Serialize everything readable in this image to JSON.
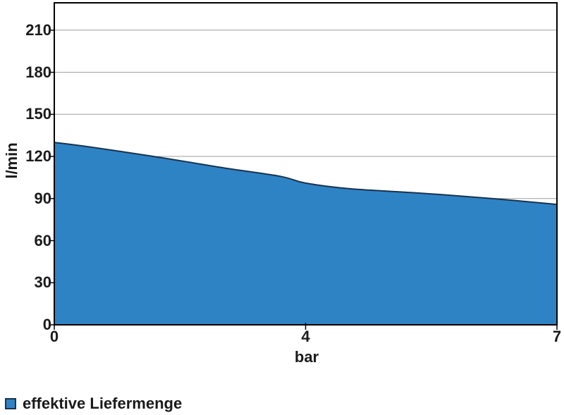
{
  "chart_data": {
    "type": "area",
    "title": "",
    "xlabel": "bar",
    "ylabel": "l/min",
    "legend": [
      {
        "label": "effektive Liefermenge",
        "color": "#2E83C5"
      }
    ],
    "legend_position": "bottom-left",
    "grid": "horizontal",
    "x_ticks": [
      {
        "label": "0",
        "fraction": 0
      },
      {
        "label": "4",
        "fraction": 0.5
      },
      {
        "label": "7",
        "fraction": 1
      }
    ],
    "y_ticks": [
      0,
      30,
      60,
      90,
      120,
      150,
      180,
      210
    ],
    "ylim": [
      0,
      229.5
    ],
    "categories": [
      0,
      4,
      7
    ],
    "series": [
      {
        "name": "effektive Liefermenge",
        "unit": "l/min",
        "values": [
          130,
          100,
          85
        ]
      }
    ],
    "smoothed": true,
    "curve_samples": [
      {
        "fx": 0.0,
        "value": 130.0
      },
      {
        "fx": 0.06,
        "value": 127.3
      },
      {
        "fx": 0.18,
        "value": 121.0
      },
      {
        "fx": 0.26,
        "value": 116.4
      },
      {
        "fx": 0.34,
        "value": 111.7
      },
      {
        "fx": 0.45,
        "value": 105.8
      },
      {
        "fx": 0.5,
        "value": 101.0
      },
      {
        "fx": 0.59,
        "value": 96.9
      },
      {
        "fx": 0.73,
        "value": 93.8
      },
      {
        "fx": 0.87,
        "value": 90.0
      },
      {
        "fx": 1.0,
        "value": 85.8
      }
    ],
    "colors": {
      "fill": "#2E83C5",
      "line": "#17344F",
      "grid": "#9D9D9D",
      "frame": "#000000",
      "text": "#1A1A1A",
      "background": "#FFFFFF"
    }
  }
}
